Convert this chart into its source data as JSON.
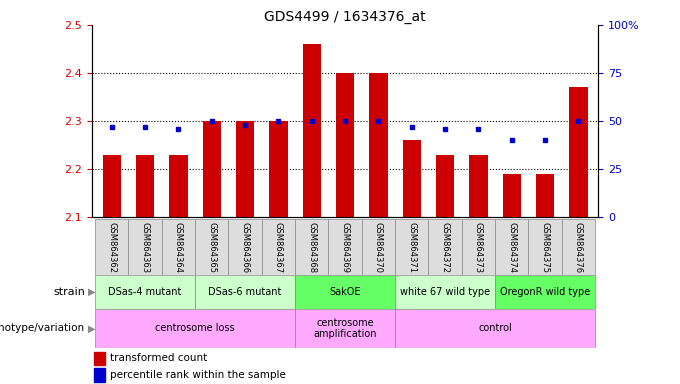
{
  "title": "GDS4499 / 1634376_at",
  "samples": [
    "GSM864362",
    "GSM864363",
    "GSM864364",
    "GSM864365",
    "GSM864366",
    "GSM864367",
    "GSM864368",
    "GSM864369",
    "GSM864370",
    "GSM864371",
    "GSM864372",
    "GSM864373",
    "GSM864374",
    "GSM864375",
    "GSM864376"
  ],
  "red_values": [
    2.23,
    2.23,
    2.23,
    2.3,
    2.3,
    2.3,
    2.46,
    2.4,
    2.4,
    2.26,
    2.23,
    2.23,
    2.19,
    2.19,
    2.37
  ],
  "blue_values": [
    47,
    47,
    46,
    50,
    48,
    50,
    50,
    50,
    50,
    47,
    46,
    46,
    40,
    40,
    50
  ],
  "ylim_left": [
    2.1,
    2.5
  ],
  "ylim_right": [
    0,
    100
  ],
  "yticks_left": [
    2.1,
    2.2,
    2.3,
    2.4,
    2.5
  ],
  "yticks_right": [
    0,
    25,
    50,
    75,
    100
  ],
  "strain_groups": [
    {
      "label": "DSas-4 mutant",
      "start": 0,
      "end": 2,
      "color": "#ccffcc"
    },
    {
      "label": "DSas-6 mutant",
      "start": 3,
      "end": 5,
      "color": "#ccffcc"
    },
    {
      "label": "SakOE",
      "start": 6,
      "end": 8,
      "color": "#66ff66"
    },
    {
      "label": "white 67 wild type",
      "start": 9,
      "end": 11,
      "color": "#ccffcc"
    },
    {
      "label": "OregonR wild type",
      "start": 12,
      "end": 14,
      "color": "#66ff66"
    }
  ],
  "genotype_groups": [
    {
      "label": "centrosome loss",
      "start": 0,
      "end": 5,
      "color": "#ffaaff"
    },
    {
      "label": "centrosome\namplification",
      "start": 6,
      "end": 8,
      "color": "#ffaaff"
    },
    {
      "label": "control",
      "start": 9,
      "end": 14,
      "color": "#ffaaff"
    }
  ],
  "bar_color": "#cc0000",
  "dot_color": "#0000cc",
  "tick_color_left": "#cc0000",
  "tick_color_right": "#0000cc",
  "sample_bg": "#dddddd",
  "sample_border": "#888888"
}
